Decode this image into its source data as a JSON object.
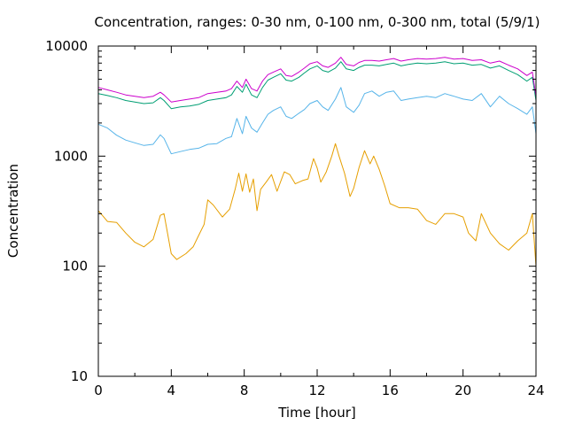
{
  "chart_data": {
    "type": "line",
    "title": "Concentration, ranges: 0-30 nm, 0-100 nm, 0-300 nm, total (5/9/1)",
    "xlabel": "Time [hour]",
    "ylabel": "Concentration",
    "xlim": [
      0,
      24
    ],
    "ylim": [
      10,
      10000
    ],
    "yscale": "log",
    "grid": false,
    "legend": "none",
    "x_ticks": [
      0,
      4,
      8,
      12,
      16,
      20,
      24
    ],
    "x_tick_labels": [
      "0",
      "4",
      "8",
      "12",
      "16",
      "20",
      "24"
    ],
    "y_ticks": [
      10,
      100,
      1000,
      10000
    ],
    "y_tick_labels": [
      "10",
      "100",
      "1000",
      "10000"
    ],
    "series": [
      {
        "color": "#e69f00",
        "x": [
          0,
          0.5,
          1,
          1.5,
          2,
          2.5,
          3,
          3.4,
          3.6,
          4,
          4.3,
          4.8,
          5.2,
          5.5,
          5.8,
          6,
          6.3,
          6.8,
          7.2,
          7.5,
          7.7,
          7.9,
          8.1,
          8.3,
          8.5,
          8.7,
          8.9,
          9.2,
          9.5,
          9.8,
          10.2,
          10.5,
          10.8,
          11.2,
          11.5,
          11.8,
          12,
          12.2,
          12.5,
          12.8,
          13,
          13.2,
          13.5,
          13.8,
          14,
          14.3,
          14.6,
          14.9,
          15.1,
          15.4,
          15.7,
          16,
          16.5,
          17,
          17.5,
          18,
          18.5,
          19,
          19.5,
          20,
          20.3,
          20.7,
          21,
          21.5,
          22,
          22.5,
          23,
          23.5,
          23.8,
          24
        ],
        "y": [
          320,
          255,
          250,
          200,
          165,
          150,
          175,
          290,
          300,
          130,
          115,
          130,
          150,
          190,
          240,
          400,
          360,
          280,
          330,
          500,
          700,
          480,
          690,
          470,
          620,
          320,
          500,
          580,
          680,
          480,
          720,
          680,
          560,
          600,
          620,
          950,
          780,
          580,
          720,
          1000,
          1300,
          1000,
          700,
          430,
          510,
          790,
          1120,
          850,
          1000,
          760,
          540,
          370,
          340,
          340,
          330,
          260,
          240,
          300,
          300,
          280,
          200,
          170,
          300,
          200,
          160,
          140,
          170,
          200,
          300,
          100
        ]
      },
      {
        "color": "#56b4e9",
        "x": [
          0,
          0.5,
          1,
          1.5,
          2,
          2.5,
          3,
          3.4,
          3.6,
          4,
          4.5,
          5,
          5.5,
          6,
          6.5,
          7,
          7.3,
          7.6,
          7.9,
          8.1,
          8.4,
          8.7,
          9,
          9.3,
          9.6,
          10,
          10.3,
          10.6,
          11,
          11.3,
          11.6,
          12,
          12.3,
          12.6,
          13,
          13.3,
          13.6,
          14,
          14.3,
          14.6,
          15,
          15.4,
          15.8,
          16.2,
          16.6,
          17,
          17.5,
          18,
          18.5,
          19,
          19.5,
          20,
          20.5,
          21,
          21.5,
          22,
          22.5,
          23,
          23.5,
          23.8,
          24
        ],
        "y": [
          1950,
          1800,
          1550,
          1400,
          1320,
          1250,
          1280,
          1560,
          1450,
          1050,
          1100,
          1150,
          1180,
          1280,
          1300,
          1450,
          1500,
          2200,
          1600,
          2300,
          1800,
          1650,
          2000,
          2400,
          2600,
          2800,
          2300,
          2200,
          2450,
          2650,
          3000,
          3200,
          2800,
          2600,
          3300,
          4200,
          2800,
          2500,
          2900,
          3700,
          3900,
          3500,
          3800,
          3900,
          3200,
          3300,
          3400,
          3500,
          3400,
          3700,
          3500,
          3300,
          3200,
          3700,
          2800,
          3500,
          3000,
          2700,
          2400,
          2800,
          1600
        ]
      },
      {
        "color": "#009e73",
        "x": [
          0,
          0.5,
          1,
          1.5,
          2,
          2.5,
          3,
          3.4,
          3.6,
          4,
          4.5,
          5,
          5.5,
          6,
          6.5,
          7,
          7.3,
          7.6,
          7.9,
          8.1,
          8.4,
          8.7,
          9,
          9.3,
          9.6,
          10,
          10.3,
          10.6,
          11,
          11.3,
          11.6,
          12,
          12.3,
          12.6,
          13,
          13.3,
          13.6,
          14,
          14.3,
          14.6,
          15,
          15.4,
          15.8,
          16.2,
          16.6,
          17,
          17.5,
          18,
          18.5,
          19,
          19.5,
          20,
          20.5,
          21,
          21.5,
          22,
          22.5,
          23,
          23.5,
          23.8,
          24
        ],
        "y": [
          3700,
          3550,
          3400,
          3200,
          3100,
          3000,
          3050,
          3400,
          3200,
          2700,
          2800,
          2850,
          2950,
          3200,
          3300,
          3400,
          3600,
          4300,
          3800,
          4500,
          3600,
          3400,
          4200,
          4900,
          5200,
          5600,
          4900,
          4800,
          5200,
          5700,
          6200,
          6600,
          6000,
          5800,
          6300,
          7200,
          6200,
          6000,
          6400,
          6700,
          6700,
          6600,
          6800,
          7000,
          6600,
          6800,
          7000,
          6900,
          7000,
          7200,
          6900,
          7000,
          6700,
          6800,
          6300,
          6600,
          6000,
          5500,
          4800,
          5200,
          3200
        ]
      },
      {
        "color": "#cc00cc",
        "x": [
          0,
          0.5,
          1,
          1.5,
          2,
          2.5,
          3,
          3.4,
          3.6,
          4,
          4.5,
          5,
          5.5,
          6,
          6.5,
          7,
          7.3,
          7.6,
          7.9,
          8.1,
          8.4,
          8.7,
          9,
          9.3,
          9.6,
          10,
          10.3,
          10.6,
          11,
          11.3,
          11.6,
          12,
          12.3,
          12.6,
          13,
          13.3,
          13.6,
          14,
          14.3,
          14.6,
          15,
          15.4,
          15.8,
          16.2,
          16.6,
          17,
          17.5,
          18,
          18.5,
          19,
          19.5,
          20,
          20.5,
          21,
          21.5,
          22,
          22.5,
          23,
          23.5,
          23.8,
          24
        ],
        "y": [
          4200,
          4000,
          3800,
          3600,
          3500,
          3400,
          3500,
          3800,
          3600,
          3100,
          3200,
          3300,
          3400,
          3700,
          3800,
          3900,
          4100,
          4800,
          4200,
          5000,
          4100,
          3900,
          4800,
          5500,
          5800,
          6200,
          5400,
          5300,
          5800,
          6300,
          6900,
          7200,
          6600,
          6400,
          7000,
          7900,
          6800,
          6600,
          7100,
          7400,
          7400,
          7300,
          7500,
          7700,
          7300,
          7500,
          7700,
          7600,
          7700,
          7900,
          7600,
          7700,
          7400,
          7500,
          7000,
          7300,
          6700,
          6200,
          5400,
          5800,
          3500
        ]
      }
    ]
  }
}
